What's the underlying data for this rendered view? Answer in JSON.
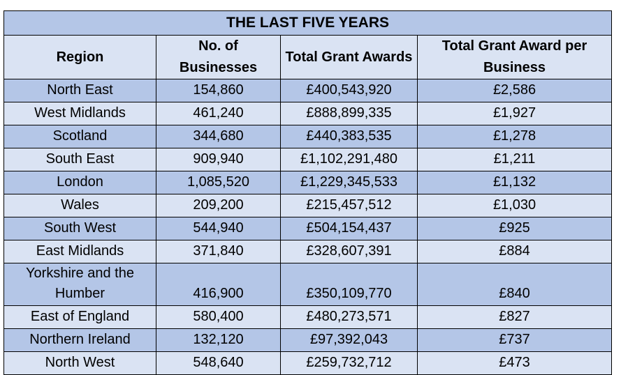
{
  "table": {
    "title": "THE LAST FIVE YEARS",
    "headers": [
      "Region",
      "No. of Businesses",
      "Total Grant Awards",
      "Total Grant Award per Business"
    ],
    "rows": [
      [
        "North East",
        "154,860",
        "£400,543,920",
        "£2,586"
      ],
      [
        "West Midlands",
        "461,240",
        "£888,899,335",
        "£1,927"
      ],
      [
        "Scotland",
        "344,680",
        "£440,383,535",
        "£1,278"
      ],
      [
        "South East",
        "909,940",
        "£1,102,291,480",
        "£1,211"
      ],
      [
        "London",
        "1,085,520",
        "£1,229,345,533",
        "£1,132"
      ],
      [
        "Wales",
        "209,200",
        "£215,457,512",
        "£1,030"
      ],
      [
        "South West",
        "544,940",
        "£504,154,437",
        "£925"
      ],
      [
        "East Midlands",
        "371,840",
        "£328,607,391",
        "£884"
      ],
      [
        "Yorkshire and the Humber",
        "416,900",
        "£350,109,770",
        "£840"
      ],
      [
        "East of England",
        "580,400",
        "£480,273,571",
        "£827"
      ],
      [
        "Northern Ireland",
        "132,120",
        "£97,392,043",
        "£737"
      ],
      [
        "North West",
        "548,640",
        "£259,732,712",
        "£473"
      ]
    ]
  },
  "colors": {
    "dark_row": "#b4c6e7",
    "light_row": "#dae3f3",
    "border": "#000000"
  }
}
